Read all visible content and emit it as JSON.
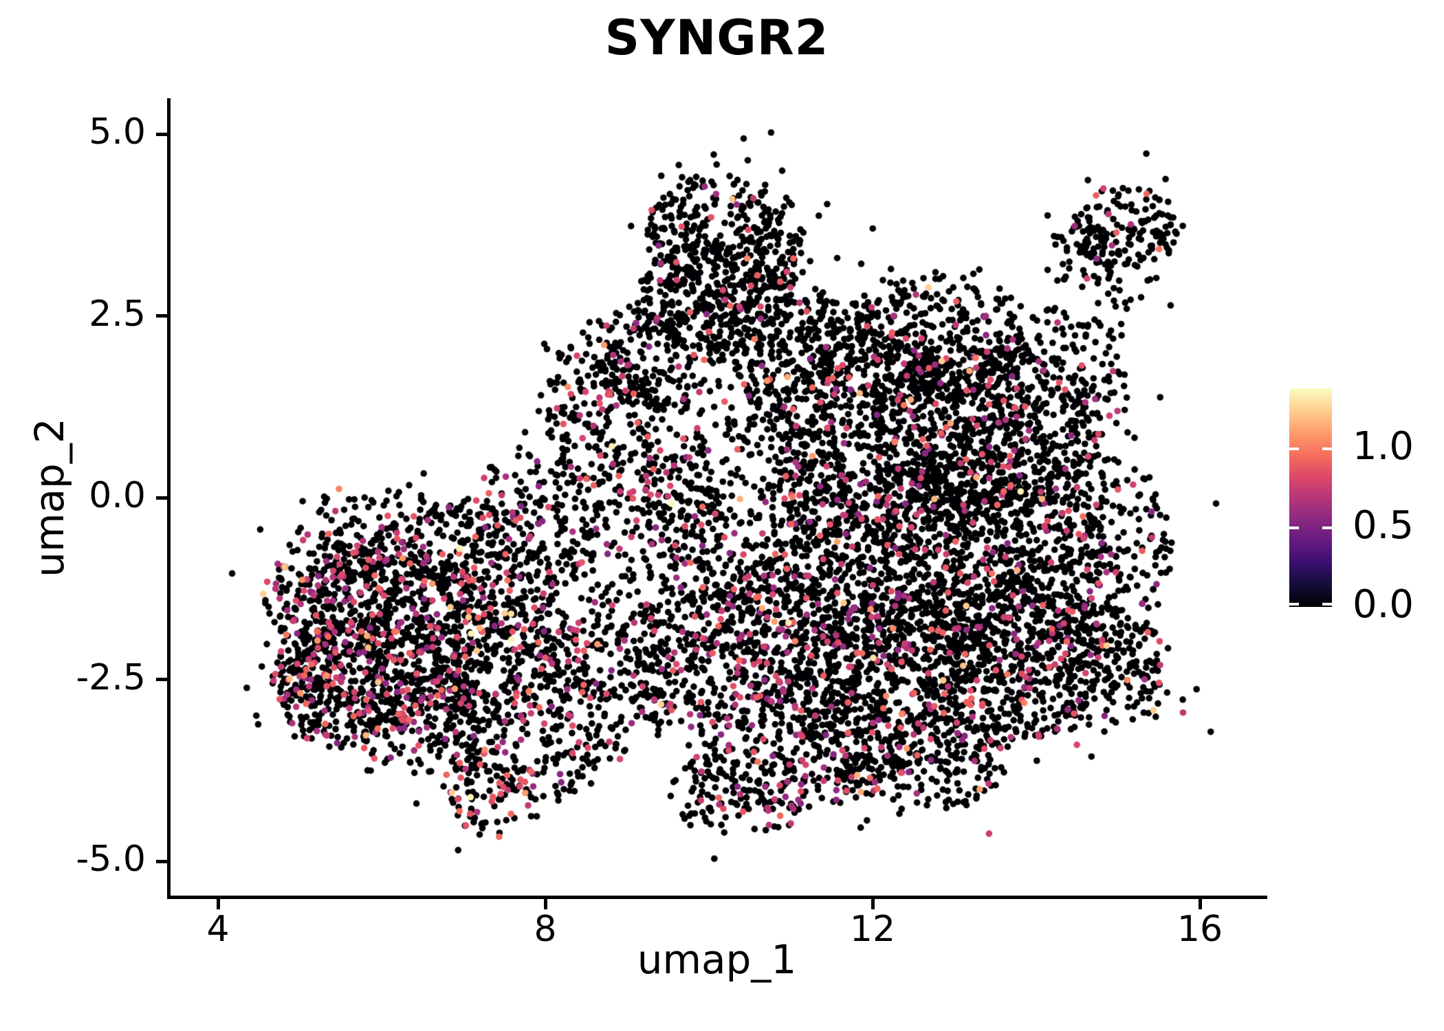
{
  "title": "SYNGR2",
  "colors": {
    "background": "#FFFFFF",
    "axis": "#000000",
    "text": "#000000"
  },
  "chart_data": {
    "type": "scatter",
    "title": "SYNGR2",
    "xlabel": "umap_1",
    "ylabel": "umap_2",
    "xlim": [
      3.4,
      16.8
    ],
    "ylim": [
      -5.5,
      5.5
    ],
    "grid": false,
    "legend_position": "right",
    "x_ticks": [
      {
        "label": "4",
        "value": 4
      },
      {
        "label": "8",
        "value": 8
      },
      {
        "label": "12",
        "value": 12
      },
      {
        "label": "16",
        "value": 16
      }
    ],
    "y_ticks": [
      {
        "label": "5.0",
        "value": 5.0
      },
      {
        "label": "2.5",
        "value": 2.5
      },
      {
        "label": "0.0",
        "value": 0.0
      },
      {
        "label": "-2.5",
        "value": -2.5
      },
      {
        "label": "-5.0",
        "value": -5.0
      }
    ],
    "colorbar": {
      "orientation": "vertical",
      "vmin": 0.0,
      "vmax": 1.38,
      "ticks": [
        {
          "label": "1.0",
          "value": 1.0
        },
        {
          "label": "0.5",
          "value": 0.5
        },
        {
          "label": "0.0",
          "value": 0.0
        }
      ],
      "palette_name": "magma",
      "palette": [
        {
          "t": 0.0,
          "hex": "#000004"
        },
        {
          "t": 0.1,
          "hex": "#140E36"
        },
        {
          "t": 0.2,
          "hex": "#3B0F70"
        },
        {
          "t": 0.3,
          "hex": "#641A80"
        },
        {
          "t": 0.4,
          "hex": "#8C2981"
        },
        {
          "t": 0.5,
          "hex": "#B63679"
        },
        {
          "t": 0.6,
          "hex": "#DE4968"
        },
        {
          "t": 0.7,
          "hex": "#F7705C"
        },
        {
          "t": 0.8,
          "hex": "#FE9F6D"
        },
        {
          "t": 0.9,
          "hex": "#FECE91"
        },
        {
          "t": 1.0,
          "hex": "#FCFDBF"
        }
      ]
    },
    "points": {
      "total_approx": 10200,
      "zero_expression_fraction_approx": 0.86,
      "value_model": {
        "zero_value": 0.0,
        "mid_range": [
          0.52,
          0.94
        ],
        "hi_range": [
          0.95,
          1.25
        ],
        "top_range": [
          1.22,
          1.38
        ],
        "top_within_hi": 0.18
      },
      "generator": {
        "seed": 42,
        "cluster_fields": [
          "cx",
          "cy",
          "sx",
          "sy",
          "n",
          "frac_mid",
          "frac_hi"
        ],
        "clusters": [
          [
            6.1,
            -1.9,
            0.75,
            0.7,
            600,
            0.17,
            0.015
          ],
          [
            5.6,
            -2.6,
            0.5,
            0.5,
            280,
            0.2,
            0.02
          ],
          [
            6.9,
            -1.1,
            0.7,
            0.6,
            350,
            0.15,
            0.012
          ],
          [
            5.35,
            -1.3,
            0.45,
            0.5,
            175,
            0.16,
            0.012
          ],
          [
            7.6,
            -2.2,
            0.6,
            0.55,
            250,
            0.16,
            0.015
          ],
          [
            6.6,
            -3.1,
            0.55,
            0.4,
            200,
            0.2,
            0.02
          ],
          [
            7.9,
            -0.3,
            0.5,
            0.55,
            160,
            0.14,
            0.01
          ],
          [
            6.3,
            -0.5,
            0.8,
            0.35,
            110,
            0.12,
            0.008
          ],
          [
            5.0,
            -2.45,
            0.2,
            0.28,
            45,
            0.22,
            0.02
          ],
          [
            7.35,
            -3.95,
            0.3,
            0.45,
            115,
            0.22,
            0.02
          ],
          [
            8.05,
            -3.8,
            0.33,
            0.22,
            55,
            0.18,
            0.03
          ],
          [
            10.2,
            3.6,
            0.55,
            0.5,
            320,
            0.05,
            0.004
          ],
          [
            10.05,
            2.75,
            0.55,
            0.45,
            240,
            0.07,
            0.006
          ],
          [
            9.35,
            2.0,
            0.5,
            0.42,
            175,
            0.08,
            0.008
          ],
          [
            10.8,
            2.3,
            0.5,
            0.5,
            200,
            0.07,
            0.006
          ],
          [
            12.3,
            0.6,
            0.9,
            0.8,
            600,
            0.08,
            0.006
          ],
          [
            13.4,
            0.95,
            0.8,
            0.7,
            530,
            0.07,
            0.005
          ],
          [
            12.2,
            -1.0,
            0.9,
            0.8,
            560,
            0.09,
            0.007
          ],
          [
            13.5,
            -0.7,
            0.8,
            0.8,
            500,
            0.08,
            0.006
          ],
          [
            12.4,
            -2.5,
            0.9,
            0.7,
            530,
            0.1,
            0.008
          ],
          [
            13.8,
            -2.3,
            0.7,
            0.6,
            370,
            0.1,
            0.008
          ],
          [
            11.2,
            -3.3,
            0.8,
            0.55,
            320,
            0.12,
            0.01
          ],
          [
            14.7,
            -0.8,
            0.55,
            0.8,
            280,
            0.08,
            0.006
          ],
          [
            14.8,
            -2.35,
            0.5,
            0.5,
            200,
            0.14,
            0.02
          ],
          [
            11.3,
            -1.8,
            0.7,
            0.7,
            340,
            0.11,
            0.008
          ],
          [
            10.6,
            -0.2,
            0.7,
            0.8,
            320,
            0.12,
            0.01
          ],
          [
            9.4,
            -0.9,
            0.6,
            0.9,
            280,
            0.13,
            0.01
          ],
          [
            11.5,
            1.8,
            0.7,
            0.6,
            330,
            0.08,
            0.006
          ],
          [
            12.8,
            2.2,
            0.6,
            0.5,
            280,
            0.06,
            0.005
          ],
          [
            14.2,
            1.6,
            0.55,
            0.6,
            210,
            0.07,
            0.005
          ],
          [
            9.0,
            0.8,
            0.55,
            0.6,
            190,
            0.13,
            0.01
          ],
          [
            8.6,
            -2.6,
            0.6,
            0.6,
            230,
            0.15,
            0.012
          ],
          [
            9.9,
            -2.2,
            0.6,
            0.6,
            250,
            0.13,
            0.01
          ],
          [
            10.4,
            -4.05,
            0.5,
            0.35,
            130,
            0.12,
            0.015
          ],
          [
            12.6,
            -3.6,
            0.6,
            0.4,
            200,
            0.1,
            0.01
          ],
          [
            8.6,
            1.4,
            0.42,
            0.42,
            95,
            0.1,
            0.008
          ],
          [
            15.1,
            3.7,
            0.38,
            0.33,
            150,
            0.06,
            0.005
          ],
          [
            14.55,
            3.3,
            0.26,
            0.26,
            48,
            0.06,
            0.005
          ],
          [
            14.9,
            2.6,
            0.3,
            0.3,
            18,
            0.05,
            0.0
          ]
        ]
      }
    }
  }
}
